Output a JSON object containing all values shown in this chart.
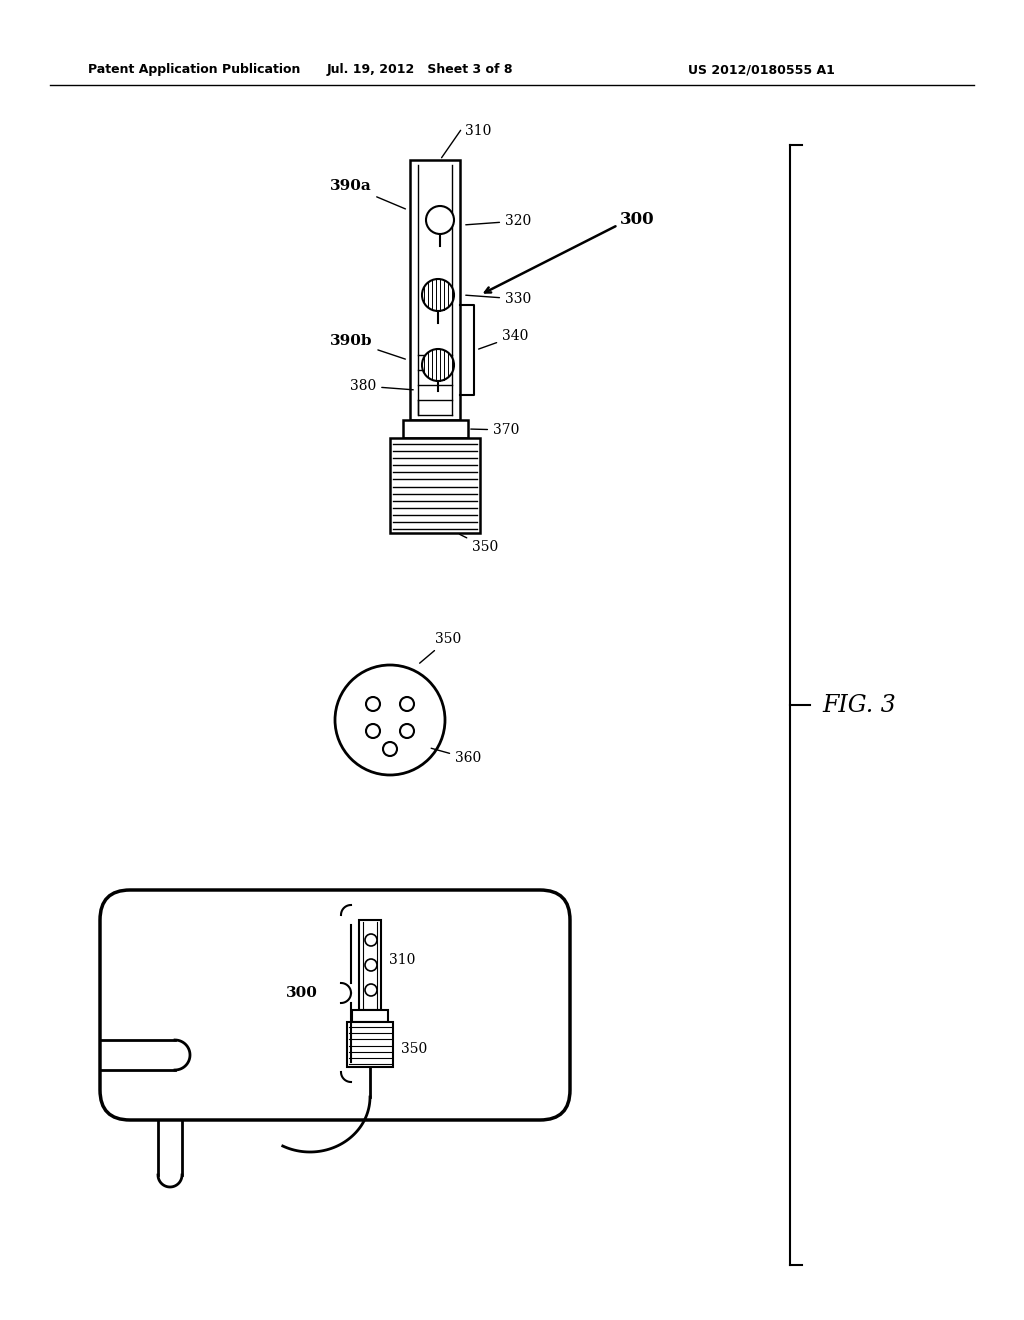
{
  "header_left": "Patent Application Publication",
  "header_center": "Jul. 19, 2012   Sheet 3 of 8",
  "header_right": "US 2012/0180555 A1",
  "fig_label": "FIG. 3",
  "bg_color": "#ffffff",
  "line_color": "#000000"
}
